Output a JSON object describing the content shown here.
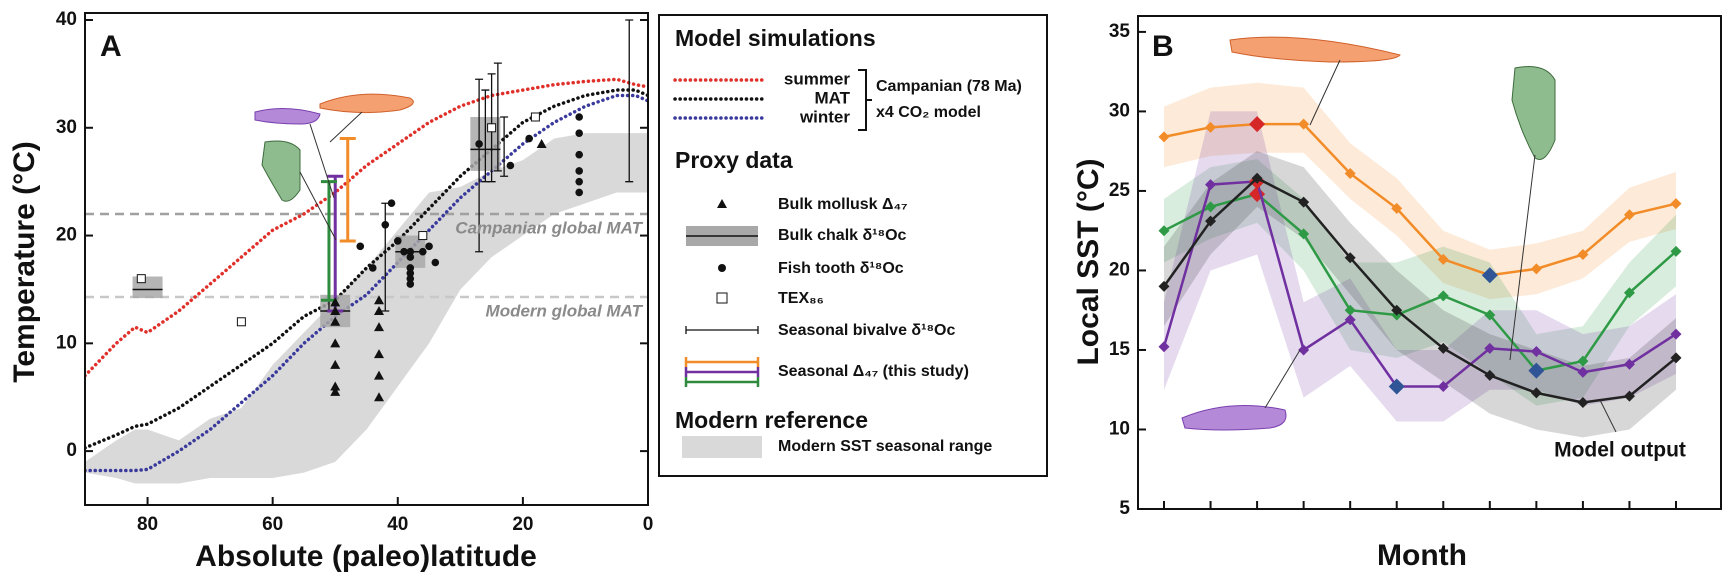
{
  "chart_data": [
    {
      "type": "line",
      "label": "A",
      "xlabel": "Absolute (paleo)latitude",
      "ylabel": "Temperature (°C)",
      "xlim": [
        90,
        0
      ],
      "ylim": [
        -5,
        40
      ],
      "xticks": [
        80,
        60,
        40,
        20,
        0
      ],
      "yticks": [
        0,
        10,
        20,
        30,
        40
      ],
      "x": [
        90,
        85,
        82,
        80,
        75,
        70,
        65,
        60,
        55,
        50,
        45,
        40,
        35,
        30,
        25,
        20,
        15,
        10,
        5,
        2,
        0
      ],
      "legend_title": "Model simulations",
      "model_group": [
        "Campanian (78 Ma)",
        "x4 CO₂ model"
      ],
      "series": [
        {
          "name": "summer",
          "color": "#e0302a",
          "values": [
            7,
            10,
            11.5,
            11,
            13,
            15.5,
            18,
            20.5,
            22,
            24,
            26.5,
            28.5,
            30.5,
            32,
            33,
            33.5,
            34,
            34.3,
            34.5,
            34,
            33.8
          ]
        },
        {
          "name": "MAT",
          "color": "#111111",
          "values": [
            0.3,
            1.5,
            2.3,
            2.5,
            4,
            6,
            8,
            10,
            12.5,
            14,
            17,
            19.5,
            22.5,
            25.5,
            28,
            30.5,
            32,
            33,
            33.5,
            33.5,
            33
          ]
        },
        {
          "name": "winter",
          "color": "#3a3a9c",
          "values": [
            -1.8,
            -1.8,
            -1.8,
            -1.7,
            0,
            2,
            4.5,
            7,
            10,
            12.5,
            14.5,
            17.5,
            20.5,
            23.5,
            26,
            28.5,
            30.5,
            32,
            33,
            33,
            32.5
          ]
        }
      ],
      "band": {
        "name": "Modern SST seasonal range",
        "color": "#d9d9d9",
        "lower": [
          -2,
          -2.5,
          -3,
          -3,
          -3,
          -2.5,
          -2.5,
          -2.5,
          -2,
          -1,
          2,
          6,
          10,
          15,
          18,
          20,
          22,
          23,
          24,
          24,
          24
        ],
        "upper": [
          -1,
          1,
          2,
          2,
          1,
          3,
          4,
          8,
          11,
          14,
          17,
          20.5,
          24,
          24.5,
          26,
          27,
          29,
          29.5,
          29.5,
          29.5,
          29.5
        ]
      },
      "modern_title": "Modern reference",
      "reference_lines": [
        {
          "label": "Campanian global MAT",
          "value": 22
        },
        {
          "label": "Modern global MAT",
          "value": 14.3
        }
      ],
      "proxy_title": "Proxy data",
      "proxies": {
        "mollusk": {
          "name": "Bulk mollusk Δ₄₇",
          "x": [
            50,
            50,
            50,
            50,
            50,
            50,
            50,
            43,
            43,
            43,
            43,
            43,
            43,
            17
          ],
          "values": [
            5.5,
            6,
            8,
            10,
            12,
            13,
            13.8,
            5,
            7,
            9,
            11.5,
            13,
            14,
            28.5
          ]
        },
        "chalk": {
          "name": "Bulk chalk δ¹⁸Oc",
          "x": [
            80,
            50,
            38,
            26
          ],
          "values": [
            15,
            13,
            18.5,
            28
          ],
          "lower": [
            14.2,
            11.5,
            17,
            26
          ],
          "upper": [
            16.2,
            14.5,
            20,
            31
          ]
        },
        "fish": {
          "name": "Fish tooth δ¹⁸Oc",
          "x": [
            46,
            44,
            42,
            41,
            40,
            39,
            38,
            38,
            38,
            38,
            38,
            38,
            36,
            35,
            34,
            27,
            22,
            19,
            11,
            11,
            11,
            11,
            11,
            11
          ],
          "values": [
            19,
            17,
            21,
            23,
            19.5,
            18.5,
            18.5,
            18,
            17,
            16.5,
            16,
            15.5,
            18.5,
            19,
            17.5,
            28.5,
            26.5,
            29,
            24,
            25,
            26,
            27.5,
            29.5,
            31
          ]
        },
        "tex": {
          "name": "TEX₈₆",
          "x": [
            81,
            65,
            36,
            25,
            18
          ],
          "values": [
            16,
            12,
            20,
            30,
            31
          ]
        },
        "bivalve": {
          "name": "Seasonal bivalve δ¹⁸Oc",
          "x": [
            51,
            42,
            27,
            26,
            25,
            24,
            23,
            3
          ],
          "lower": [
            13,
            13,
            18.5,
            25,
            25,
            26,
            25.5,
            25
          ],
          "upper": [
            25,
            23,
            34.5,
            33.5,
            35,
            36,
            31,
            40
          ]
        },
        "seasonal": {
          "name": "Seasonal Δ₄₇ (this study)",
          "x": [
            48,
            50,
            51
          ],
          "colors": [
            "#f28c28",
            "#7030a0",
            "#2e8b3e"
          ],
          "lower": [
            19.5,
            13,
            14
          ],
          "upper": [
            29,
            25.5,
            25
          ]
        }
      }
    },
    {
      "type": "line",
      "label": "B",
      "xlabel": "Month",
      "ylabel": "Local SST (°C)",
      "ylim": [
        5,
        36
      ],
      "yticks": [
        5,
        10,
        15,
        20,
        25,
        30,
        35
      ],
      "categories": [
        null,
        null,
        null,
        null,
        null,
        null,
        null,
        null,
        null,
        null,
        null,
        null
      ],
      "max_color": "#d62728",
      "min_color": "#2f5597",
      "series": [
        {
          "color": "#f28c28",
          "values": [
            28.4,
            29.0,
            29.2,
            29.2,
            26.1,
            23.9,
            20.7,
            19.7,
            20.1,
            21.0,
            23.5,
            24.2
          ],
          "lower": [
            26.5,
            27.2,
            27.4,
            27.4,
            24.5,
            22.2,
            19.2,
            18.2,
            18.5,
            19.5,
            21.8,
            22.6
          ],
          "upper": [
            30.3,
            31.5,
            31.8,
            31.5,
            28,
            25.8,
            22.5,
            21.3,
            21.7,
            22.5,
            25.2,
            26.2
          ]
        },
        {
          "color": "#2e9a46",
          "values": [
            22.5,
            24.0,
            24.8,
            22.3,
            17.5,
            17.2,
            18.4,
            17.2,
            13.7,
            14.3,
            18.6,
            21.2
          ],
          "lower": [
            20.5,
            22,
            23,
            20,
            15,
            14.5,
            15.5,
            13.5,
            11.5,
            12,
            16.5,
            19
          ],
          "upper": [
            24.5,
            26.5,
            27,
            24.5,
            20.5,
            20.5,
            21.5,
            20.5,
            16,
            16.5,
            20.5,
            23.5
          ]
        },
        {
          "color": "#7030a0",
          "values": [
            15.2,
            25.4,
            25.6,
            15.0,
            16.9,
            12.7,
            12.7,
            15.1,
            14.9,
            13.6,
            14.1,
            16.0
          ],
          "lower": [
            12.5,
            20,
            21,
            12,
            14,
            10.5,
            10.5,
            12.5,
            12.5,
            11.5,
            12,
            13.5
          ],
          "upper": [
            18,
            30,
            30,
            18,
            19.5,
            15,
            15,
            17.5,
            17.5,
            16,
            16.5,
            18.5
          ]
        },
        {
          "name": "Model output",
          "color": "#222222",
          "values": [
            19.0,
            23.1,
            25.8,
            24.3,
            20.8,
            17.5,
            15.1,
            13.4,
            12.3,
            11.7,
            12.1,
            14.5
          ],
          "lower": [
            16.5,
            21,
            24,
            22,
            18.5,
            15,
            13,
            11,
            10,
            9.5,
            10,
            12.5
          ],
          "upper": [
            21.5,
            25.5,
            27.5,
            26.5,
            23,
            20,
            17.5,
            16,
            15,
            14,
            14.5,
            17
          ]
        }
      ]
    }
  ]
}
